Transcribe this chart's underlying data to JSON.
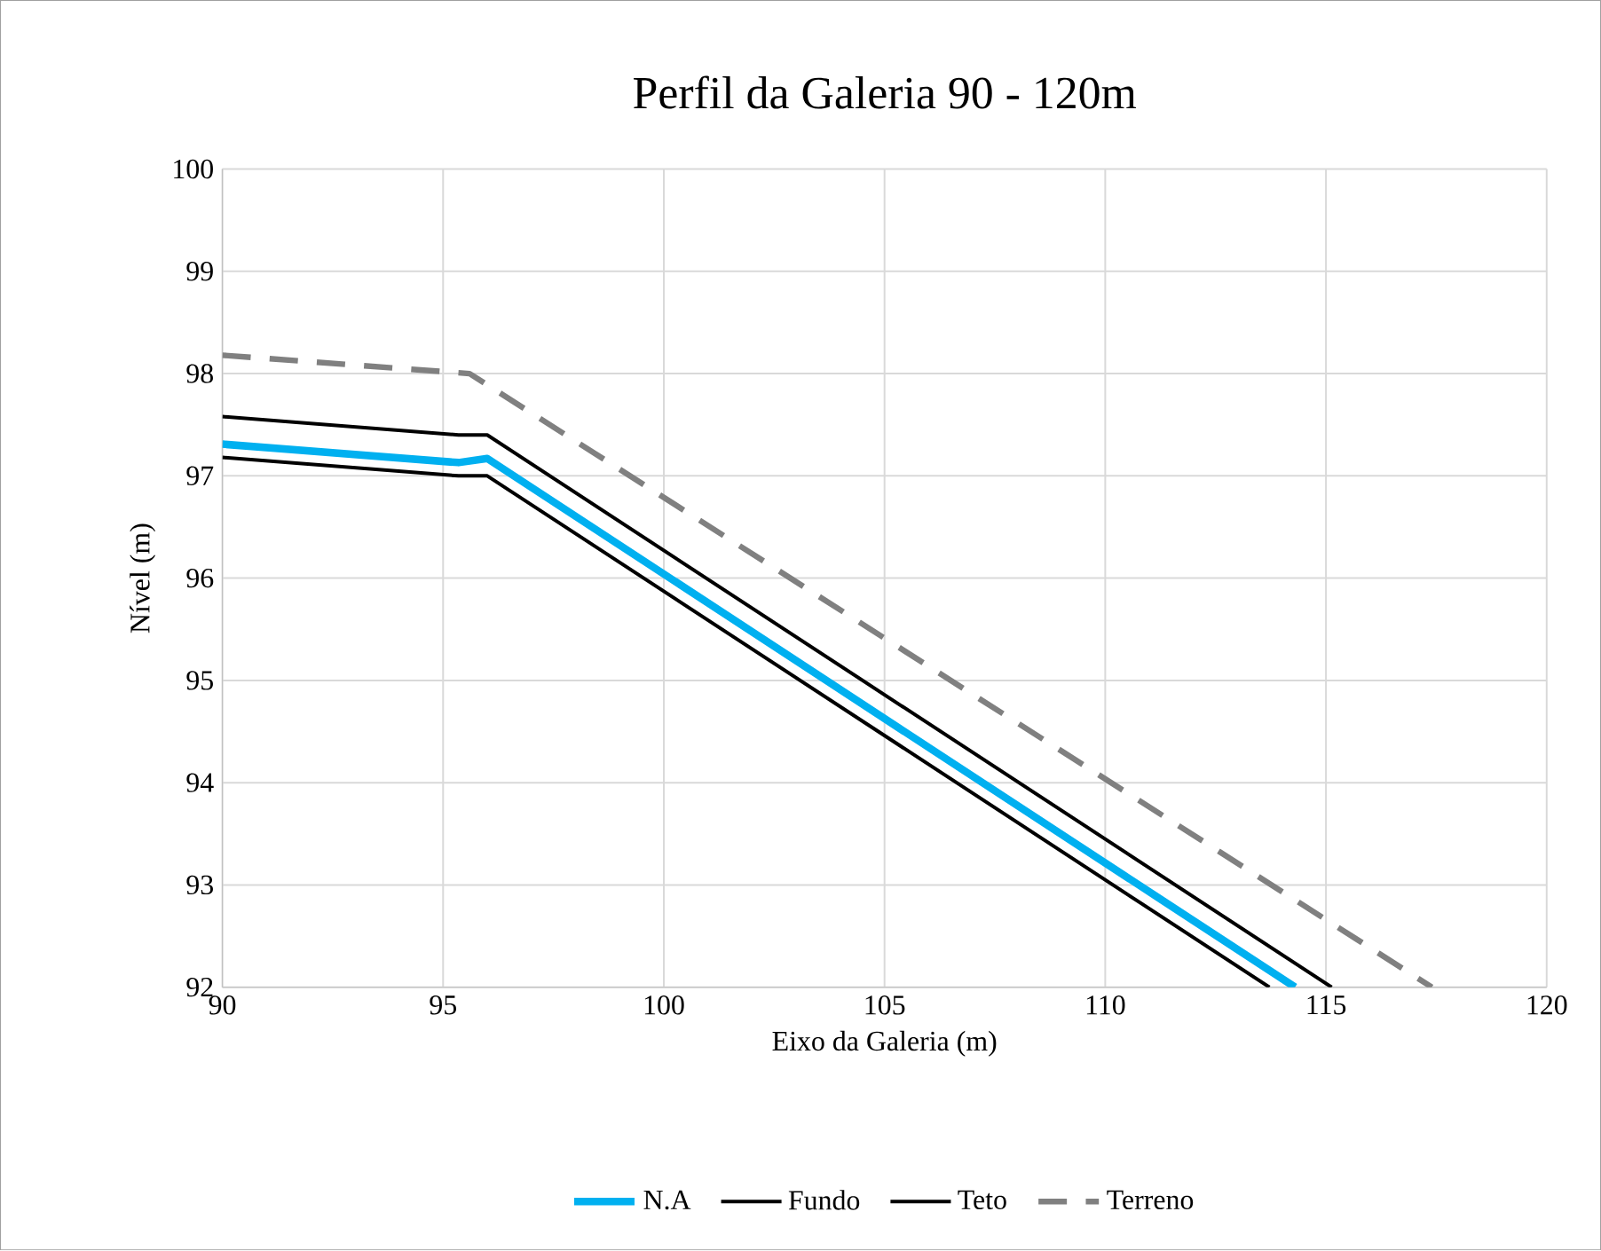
{
  "chart_data": {
    "type": "line",
    "title": "Perfil da Galeria 90 - 120m",
    "xlabel": "Eixo da Galeria (m)",
    "ylabel": "Nível (m)",
    "xlim": [
      90,
      120
    ],
    "ylim": [
      92,
      100
    ],
    "xticks": [
      90,
      95,
      100,
      105,
      110,
      115,
      120
    ],
    "yticks": [
      92,
      93,
      94,
      95,
      96,
      97,
      98,
      99,
      100
    ],
    "grid": true,
    "legend": "bottom",
    "series": [
      {
        "name": "N.A",
        "color": "#00b0f0",
        "x": [
          90,
          95.35,
          96,
          114.3
        ],
        "values": [
          97.31,
          97.13,
          97.17,
          92
        ]
      },
      {
        "name": "Fundo",
        "color": "#000000",
        "x": [
          90,
          95.35,
          96,
          113.72
        ],
        "values": [
          97.18,
          97.0,
          97.0,
          92
        ]
      },
      {
        "name": "Teto",
        "color": "#000000",
        "x": [
          90,
          95.35,
          96,
          115.13
        ],
        "values": [
          97.58,
          97.4,
          97.4,
          92
        ]
      },
      {
        "name": "Terreno",
        "color": "#808080",
        "line_style": "dashed",
        "x": [
          90,
          95.6,
          117.4
        ],
        "values": [
          98.18,
          98.0,
          92
        ]
      }
    ]
  }
}
